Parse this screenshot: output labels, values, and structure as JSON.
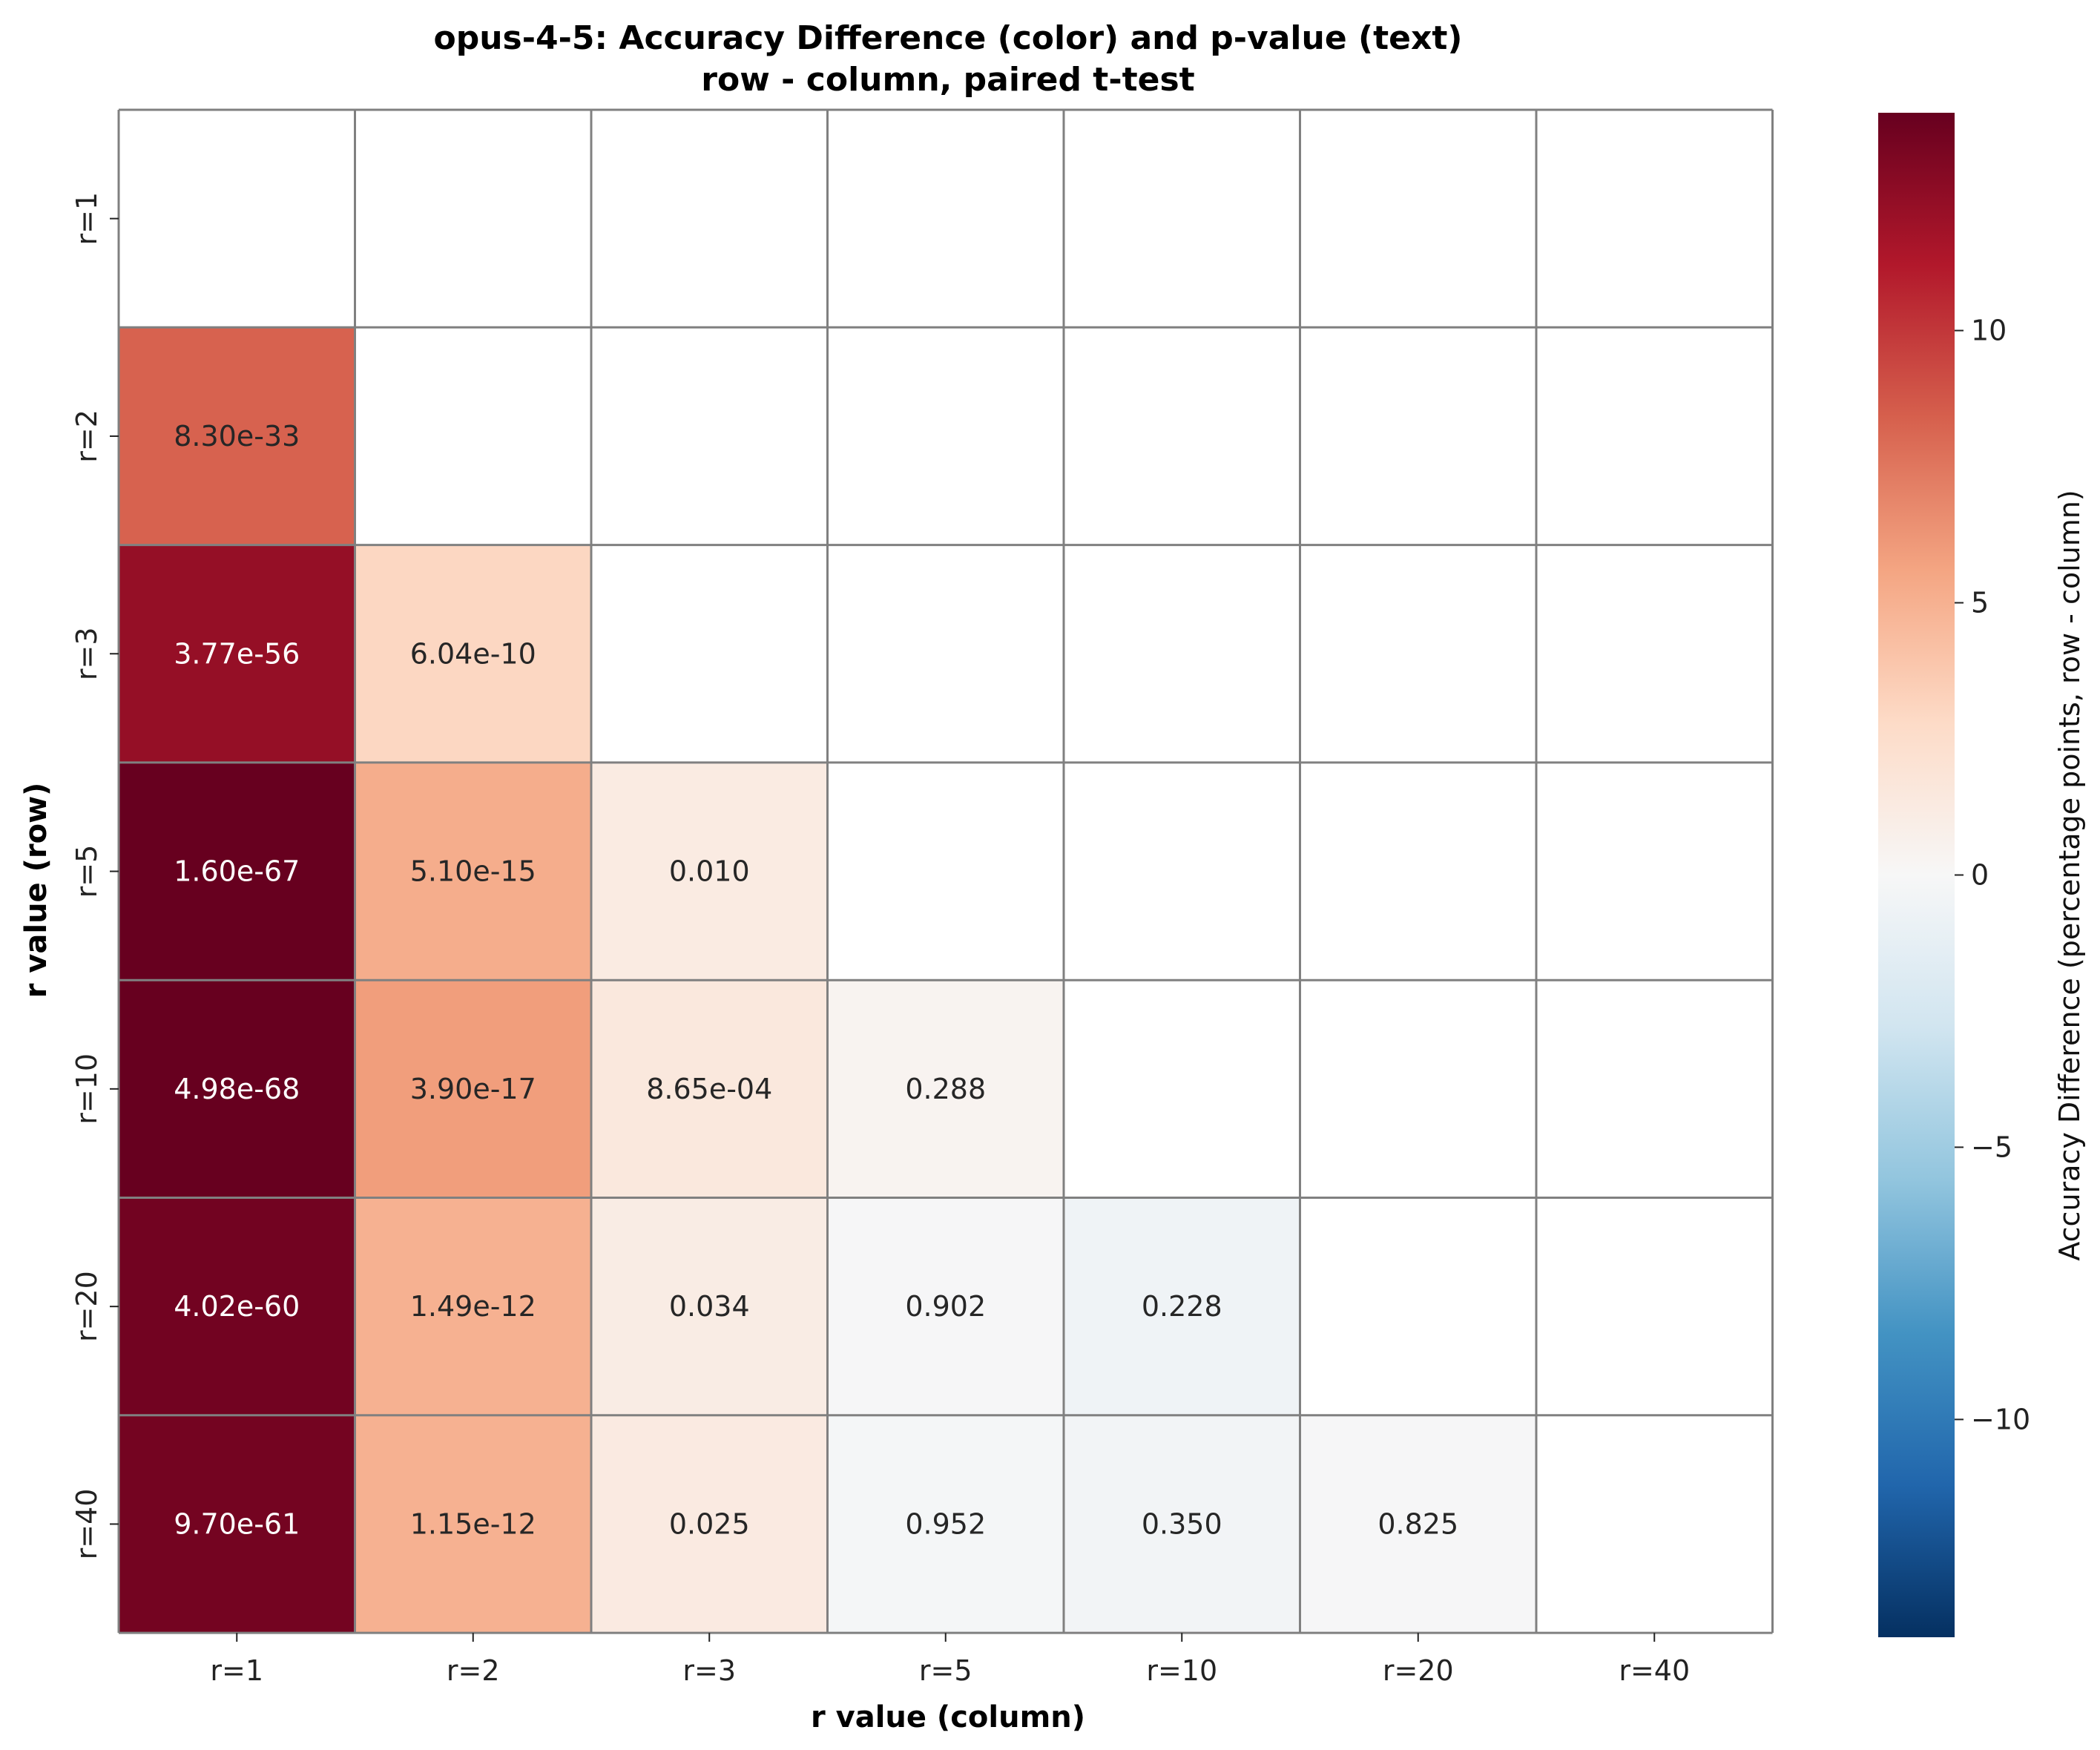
{
  "chart_data": {
    "type": "heatmap",
    "title": "opus-4-5: Accuracy Difference (color) and p-value (text)",
    "subtitle": "row - column, paired t-test",
    "xlabel": "r value (column)",
    "ylabel": "r value (row)",
    "x_categories": [
      "r=1",
      "r=2",
      "r=3",
      "r=5",
      "r=10",
      "r=20",
      "r=40"
    ],
    "y_categories": [
      "r=1",
      "r=2",
      "r=3",
      "r=5",
      "r=10",
      "r=20",
      "r=40"
    ],
    "colorbar": {
      "label": "Accuracy Difference (percentage points, row - column)",
      "range": [
        -14,
        14
      ],
      "ticks": [
        -10,
        -5,
        0,
        5,
        10
      ],
      "tick_labels": [
        "−10",
        "−5",
        "0",
        "5",
        "10"
      ],
      "colormap": "RdBu_r"
    },
    "values": [
      [
        null,
        null,
        null,
        null,
        null,
        null,
        null
      ],
      [
        8.3,
        null,
        null,
        null,
        null,
        null,
        null
      ],
      [
        12.3,
        3.0,
        null,
        null,
        null,
        null,
        null
      ],
      [
        14.0,
        5.2,
        1.2,
        null,
        null,
        null,
        null
      ],
      [
        14.3,
        5.9,
        1.5,
        0.4,
        null,
        null,
        null
      ],
      [
        13.6,
        5.0,
        1.1,
        -0.1,
        -0.6,
        null,
        null
      ],
      [
        13.5,
        5.0,
        1.3,
        -0.2,
        -0.4,
        -0.1,
        null
      ]
    ],
    "p_values": [
      [
        null,
        null,
        null,
        null,
        null,
        null,
        null
      ],
      [
        "8.30e-33",
        null,
        null,
        null,
        null,
        null,
        null
      ],
      [
        "3.77e-56",
        "6.04e-10",
        null,
        null,
        null,
        null,
        null
      ],
      [
        "1.60e-67",
        "5.10e-15",
        "0.010",
        null,
        null,
        null,
        null
      ],
      [
        "4.98e-68",
        "3.90e-17",
        "8.65e-04",
        "0.288",
        null,
        null,
        null
      ],
      [
        "4.02e-60",
        "1.49e-12",
        "0.034",
        "0.902",
        "0.228",
        null,
        null
      ],
      [
        "9.70e-61",
        "1.15e-12",
        "0.025",
        "0.952",
        "0.350",
        "0.825",
        null
      ]
    ]
  }
}
